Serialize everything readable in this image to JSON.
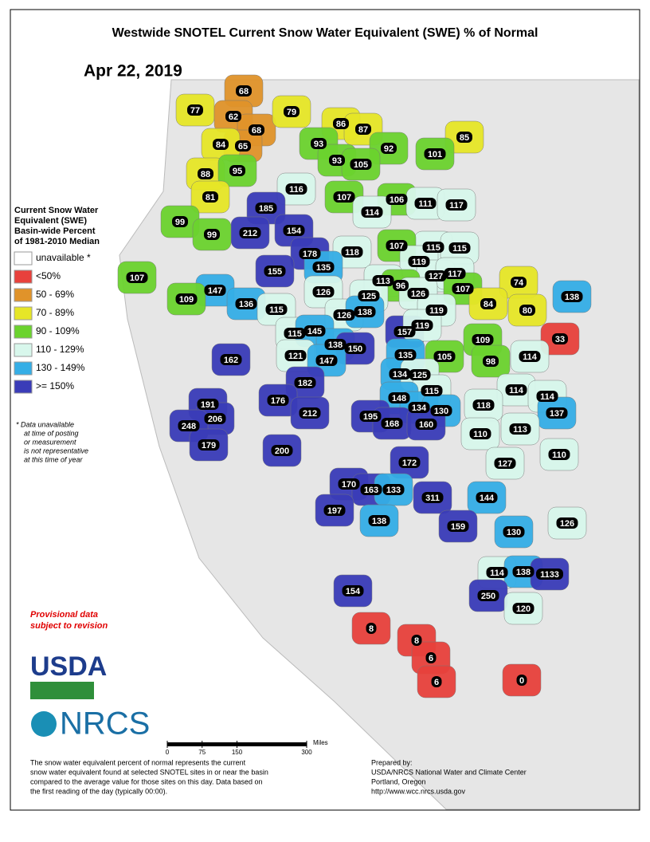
{
  "header": {
    "title": "Westwide SNOTEL Current Snow Water Equivalent (SWE) % of Normal",
    "date": "Apr 22, 2019"
  },
  "legend": {
    "title": [
      "Current Snow Water",
      "Equivalent (SWE)",
      "Basin-wide Percent",
      "of 1981-2010 Median"
    ],
    "items": [
      {
        "label": "unavailable *",
        "color": "#ffffff"
      },
      {
        "label": "<50%",
        "color": "#e8413c"
      },
      {
        "label": "50 - 69%",
        "color": "#e0932a",
        "min": 50
      },
      {
        "label": "70 - 89%",
        "color": "#e6e627",
        "min": 70
      },
      {
        "label": "90 - 109%",
        "color": "#6bd32e",
        "min": 90
      },
      {
        "label": "110 - 129%",
        "color": "#d8f7ec",
        "min": 110
      },
      {
        "label": "130 - 149%",
        "color": "#35aee6",
        "min": 130
      },
      {
        "label": ">= 150%",
        "color": "#3a3cb8",
        "min": 150
      }
    ],
    "note": [
      "*  Data unavailable",
      "at time of posting",
      "or measurement",
      "is not representative",
      "at this time of year"
    ]
  },
  "basin_values": [
    77,
    68,
    62,
    68,
    65,
    84,
    79,
    86,
    87,
    85,
    93,
    92,
    101,
    88,
    95,
    93,
    105,
    116,
    81,
    107,
    106,
    111,
    117,
    185,
    114,
    99,
    212,
    154,
    99,
    115,
    115,
    107,
    178,
    118,
    119,
    135,
    155,
    127,
    117,
    107,
    113,
    96,
    74,
    147,
    126,
    126,
    107,
    138,
    109,
    136,
    125,
    84,
    80,
    115,
    126,
    138,
    119,
    157,
    119,
    33,
    115,
    145,
    109,
    138,
    150,
    135,
    114,
    162,
    121,
    147,
    98,
    105,
    134,
    125,
    182,
    114,
    115,
    114,
    148,
    176,
    118,
    191,
    134,
    130,
    137,
    212,
    206,
    195,
    168,
    160,
    248,
    113,
    110,
    179,
    200,
    110,
    172,
    127,
    170,
    163,
    133,
    144,
    311,
    197,
    138,
    159,
    130,
    126,
    114,
    138,
    1133,
    154,
    250,
    120,
    8,
    8,
    6,
    6,
    0
  ],
  "provisional": [
    "Provisional data",
    "subject to revision"
  ],
  "logos": {
    "usda": "USDA",
    "nrcs": "NRCS"
  },
  "scale": {
    "ticks": [
      0,
      75,
      150,
      300
    ],
    "unit": "Miles"
  },
  "footer": {
    "description": [
      "The snow water equivalent percent of normal represents the current",
      "snow water equivalent found at selected SNOTEL sites in or near the basin",
      "compared to the average value for those sites on this day. Data based on",
      "the first reading of the day (typically 00:00)."
    ],
    "prepared": [
      "Prepared by:",
      "USDA/NRCS National Water and Climate Center",
      "Portland, Oregon",
      "http://www.wcc.nrcs.usda.gov"
    ]
  }
}
